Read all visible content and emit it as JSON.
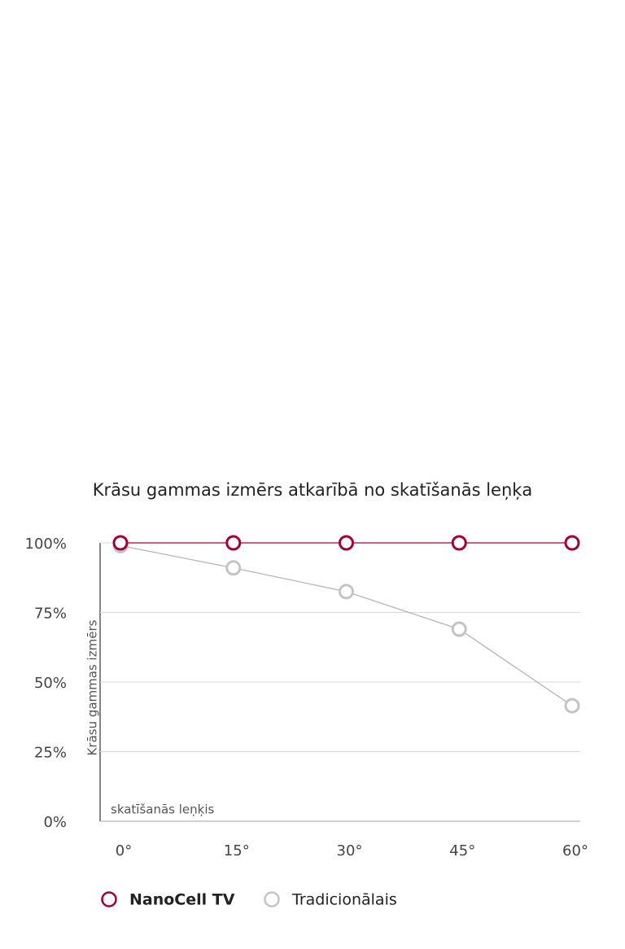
{
  "chart_data": {
    "type": "line",
    "title": "Krāsu gammas izmērs atkarībā no skatīšanās leņķa",
    "y_label": "Krāsu gammas izmērs",
    "x_label": "skatīšanās leņķis",
    "categories": [
      "0°",
      "15°",
      "30°",
      "45°",
      "60°"
    ],
    "series": [
      {
        "name": "NanoCell TV",
        "color": "#a50034",
        "values": [
          100,
          100,
          100,
          100,
          100
        ]
      },
      {
        "name": "Tradicionālais",
        "color": "#c4c4c4",
        "values": [
          99,
          91,
          82.5,
          69,
          41.5
        ]
      }
    ],
    "ylim": [
      0,
      100
    ],
    "yticks": [
      {
        "value": 0,
        "label": "0%"
      },
      {
        "value": 25,
        "label": "25%"
      },
      {
        "value": 50,
        "label": "50%"
      },
      {
        "value": 75,
        "label": "75%"
      },
      {
        "value": 100,
        "label": "100%"
      }
    ],
    "grid": true
  }
}
